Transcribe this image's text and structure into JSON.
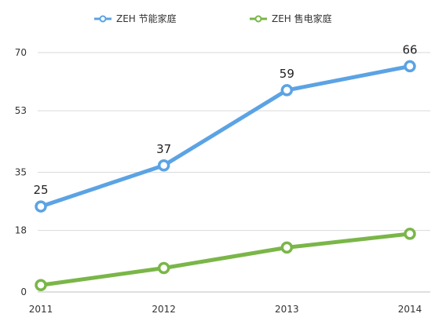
{
  "chart_data": {
    "type": "line",
    "x": [
      "2011",
      "2012",
      "2013",
      "2014"
    ],
    "series": [
      {
        "name": "ZEH 节能家庭",
        "values": [
          25,
          37,
          59,
          66
        ],
        "color": "#5ba3e4",
        "data_labels": [
          "25",
          "37",
          "59",
          "66"
        ]
      },
      {
        "name": "ZEH 售电家庭",
        "values": [
          2,
          7,
          13,
          17
        ],
        "color": "#7ab648",
        "data_labels": []
      }
    ],
    "y_ticks": [
      0,
      18,
      35,
      53,
      70
    ],
    "y_tick_labels": [
      "0",
      "18",
      "35",
      "53",
      "70"
    ],
    "ylim": [
      0,
      70
    ],
    "grid": true,
    "legend_position": "top-center",
    "title": "",
    "xlabel": "",
    "ylabel": ""
  }
}
